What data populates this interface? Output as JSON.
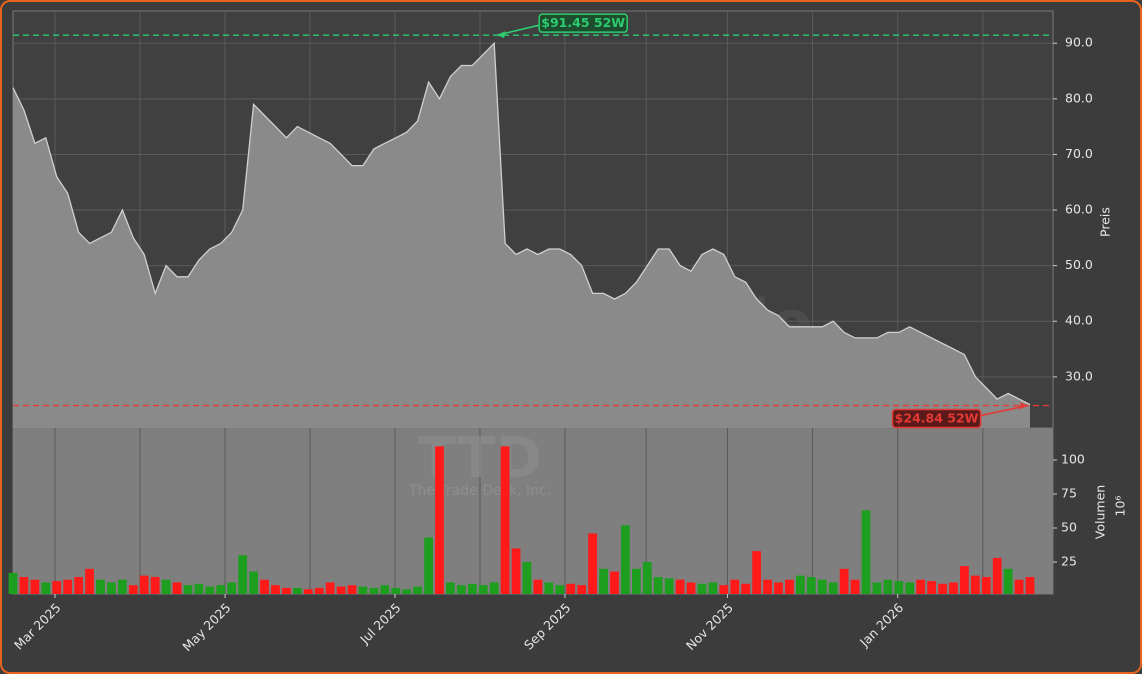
{
  "chart_data": [
    {
      "type": "area",
      "name": "TTD",
      "company": "The Trade Desk, Inc.",
      "watermark": "forexsignale.trade",
      "ylabel": "Preis",
      "color": "#8a8a8a",
      "line_color": "#d0d0d0",
      "values": [
        82,
        78,
        72,
        73,
        66,
        63,
        56,
        54,
        55,
        56,
        60,
        55,
        52,
        45,
        50,
        48,
        48,
        51,
        53,
        54,
        56,
        60,
        79,
        77,
        75,
        73,
        75,
        74,
        73,
        72,
        70,
        68,
        68,
        71,
        72,
        73,
        74,
        76,
        83,
        80,
        84,
        86,
        86,
        88,
        90,
        54,
        52,
        53,
        52,
        53,
        53,
        52,
        50,
        45,
        45,
        44,
        45,
        47,
        50,
        53,
        53,
        50,
        49,
        52,
        53,
        52,
        48,
        47,
        44,
        42,
        41,
        39,
        39,
        39,
        39,
        40,
        38,
        37,
        37,
        37,
        38,
        38,
        39,
        38,
        37,
        36,
        35,
        34,
        30,
        28,
        26,
        27,
        26,
        25
      ],
      "xlim": [
        0,
        95.1
      ],
      "ylim": [
        20.8,
        95.8
      ],
      "yticks": [
        {
          "value": 30,
          "label": "30.0"
        },
        {
          "value": 40,
          "label": "40.0"
        },
        {
          "value": 50,
          "label": "50.0"
        },
        {
          "value": 60,
          "label": "60.0"
        },
        {
          "value": 70,
          "label": "70.0"
        },
        {
          "value": 80,
          "label": "80.0"
        },
        {
          "value": 90,
          "label": "90.0"
        }
      ],
      "annotations": [
        {
          "value": 91.45,
          "label": "$91.45 52W",
          "color": "#2ecc71",
          "at": 44
        },
        {
          "value": 24.84,
          "label": "$24.84 52W",
          "color": "#e53935",
          "at": 92.5
        }
      ],
      "grid": true
    },
    {
      "type": "bar",
      "ylabel": "Volumen",
      "scale_label": "10⁶",
      "values": [
        17,
        14,
        12,
        10,
        11,
        12,
        14,
        20,
        12,
        10,
        12,
        8,
        15,
        14,
        12,
        10,
        8,
        9,
        7,
        8,
        10,
        30,
        18,
        12,
        8,
        6,
        6,
        5,
        6,
        10,
        7,
        8,
        7,
        6,
        8,
        6,
        5,
        7,
        43,
        110,
        10,
        8,
        9,
        8,
        10,
        110,
        35,
        25,
        12,
        10,
        8,
        9,
        8,
        46,
        20,
        18,
        52,
        20,
        25,
        14,
        13,
        12,
        10,
        9,
        10,
        8,
        12,
        9,
        33,
        12,
        10,
        12,
        15,
        14,
        12,
        10,
        20,
        12,
        63,
        10,
        12,
        11,
        10,
        12,
        11,
        9,
        10,
        22,
        15,
        14,
        28,
        20,
        12,
        14
      ],
      "up_color": "#1e9e1e",
      "down_color": "#ff1a1a",
      "xlim": [
        0,
        95.1
      ],
      "ylim": [
        1.5,
        123.5
      ],
      "yticks": [
        25,
        50,
        75,
        100
      ],
      "xticks": [
        {
          "value": 3.84,
          "label": "Mar 2025"
        },
        {
          "value": 19.39,
          "label": "May 2025"
        },
        {
          "value": 34.93,
          "label": "Jul 2025"
        },
        {
          "value": 50.47,
          "label": "Sep 2025"
        },
        {
          "value": 65.33,
          "label": "Nov 2025"
        },
        {
          "value": 80.9,
          "label": "Jan 2026"
        }
      ],
      "grid": true
    }
  ]
}
